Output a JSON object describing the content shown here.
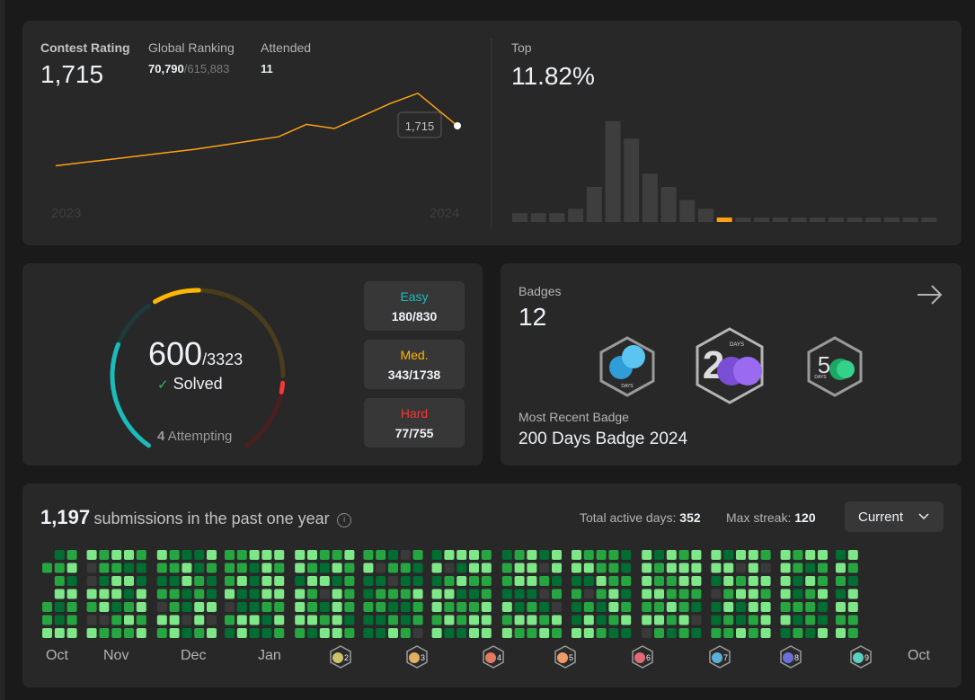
{
  "rating": {
    "contest_rating_label": "Contest Rating",
    "contest_rating_value": "1,715",
    "global_ranking_label": "Global Ranking",
    "global_ranking_value": "70,790",
    "global_ranking_total": "/615,883",
    "attended_label": "Attended",
    "attended_value": "11",
    "tooltip_value": "1,715",
    "year_start": "2023",
    "year_end": "2024",
    "top_label": "Top",
    "top_value": "11.82%"
  },
  "chart_data": {
    "type": "bar",
    "title": "",
    "values": [
      2,
      2,
      2,
      3,
      8,
      23,
      19,
      11,
      8,
      5,
      3,
      1,
      1,
      1,
      1,
      1,
      1,
      1,
      1,
      1,
      1,
      1,
      1
    ],
    "highlight_index": 11,
    "ylim": [
      0,
      25
    ]
  },
  "rating_line": {
    "type": "line",
    "points": [
      1540,
      1548,
      1556,
      1564,
      1572,
      1580,
      1590,
      1600,
      1610,
      1640,
      1630,
      1660,
      1690,
      1715
    ]
  },
  "solved": {
    "solved_count": "600",
    "total": "/3323",
    "solved_label": "Solved",
    "attempting_count": "4",
    "attempting_label": "Attempting",
    "easy_label": "Easy",
    "easy_value": "180/830",
    "medium_label": "Med.",
    "medium_value": "343/1738",
    "hard_label": "Hard",
    "hard_value": "77/755",
    "easy_fraction": 0.217,
    "medium_fraction": 0.197,
    "hard_fraction": 0.102
  },
  "badges": {
    "label": "Badges",
    "count": "12",
    "badge_days_text": "DAYS",
    "badge_fifty_text": "5",
    "recent_label": "Most Recent Badge",
    "recent_name": "200 Days Badge 2024"
  },
  "submissions": {
    "count": "1,197",
    "label": "submissions in the past one year",
    "active_days_label": "Total active days:",
    "active_days_value": "352",
    "max_streak_label": "Max streak:",
    "max_streak_value": "120",
    "current_label": "Current",
    "months_text": [
      "Oct",
      "Nov",
      "Dec",
      "Jan"
    ],
    "month_badge_numbers": [
      "2",
      "3",
      "4",
      "5",
      "6",
      "7",
      "8",
      "9"
    ],
    "month_end": "Oct"
  },
  "colors": {
    "orange": "#ffa116",
    "easy": "#1cbaba",
    "medium": "#ffb700",
    "hard": "#f63737",
    "card": "#282828",
    "green_light": "#7ee787",
    "green": "#26a641",
    "green_dark": "#006d32"
  }
}
